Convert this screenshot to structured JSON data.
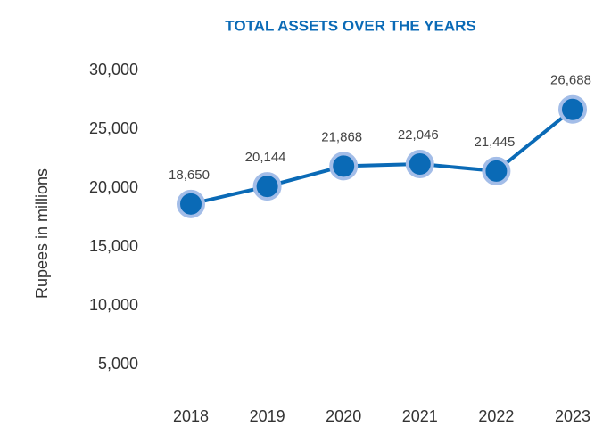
{
  "chart_data": {
    "type": "line",
    "title": "TOTAL ASSETS OVER THE YEARS",
    "ylabel": "Rupees in millions",
    "categories": [
      "2018",
      "2019",
      "2020",
      "2021",
      "2022",
      "2023"
    ],
    "values": [
      18650,
      20144,
      21868,
      22046,
      21445,
      26688
    ],
    "value_labels": [
      "18,650",
      "20,144",
      "21,868",
      "22,046",
      "21,445",
      "26,688"
    ],
    "color": "#0a6ab6",
    "marker_edge_color": "#a3bde8",
    "ylim": [
      5000,
      30000
    ],
    "yticks": [
      {
        "value": 5000,
        "label": "5,000"
      },
      {
        "value": 10000,
        "label": "10,000"
      },
      {
        "value": 15000,
        "label": "15,000"
      },
      {
        "value": 20000,
        "label": "20,000"
      },
      {
        "value": 25000,
        "label": "25,000"
      },
      {
        "value": 30000,
        "label": "30,000"
      }
    ],
    "grid": false
  }
}
